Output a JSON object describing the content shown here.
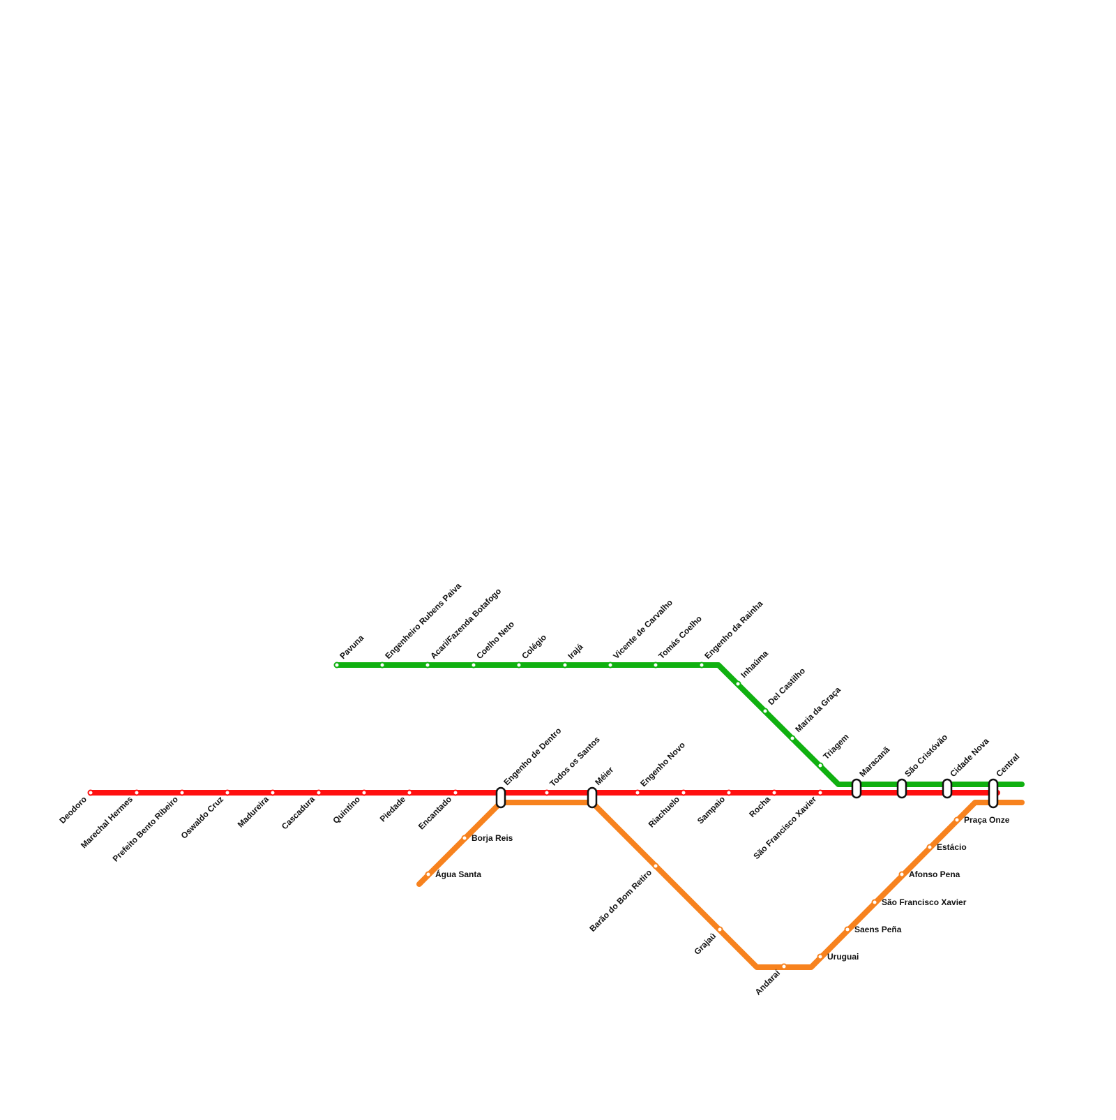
{
  "lines": [
    {
      "stations": [
        "Deodoro",
        "Marechal Hermes",
        "Prefeito Bento Ribeiro",
        "Oswaldo Cruz",
        "Madureira",
        "Cascadura",
        "Quintino",
        "Piedade",
        "Encantado",
        "Engenho de Dentro",
        "Todos os Santos",
        "Méier",
        "Engenho Novo",
        "Riachuelo",
        "Sampaio",
        "Rocha",
        "São Francisco Xavier",
        "Maracanã",
        "São Cristóvão",
        "Cidade Nova",
        "Central"
      ]
    },
    {
      "stations": [
        "Pavuna",
        "Engenheiro Rubens Paiva",
        "Acari/Fazenda Botafogo",
        "Coelho Neto",
        "Colégio",
        "Irajá",
        "Vicente de Carvalho",
        "Tomás Coelho",
        "Engenho da Rainha",
        "Inhaúma",
        "Del Castilho",
        "Maria da Graça",
        "Triagem"
      ]
    },
    {
      "stations": [
        "Água Santa",
        "Borja Reis",
        "Barão do Bom Retiro",
        "Grajaú",
        "Andaraí",
        "Uruguai",
        "Saens Peña",
        "São Francisco Xavier",
        "Afonso Pena",
        "Estácio",
        "Praça Onze"
      ]
    }
  ]
}
